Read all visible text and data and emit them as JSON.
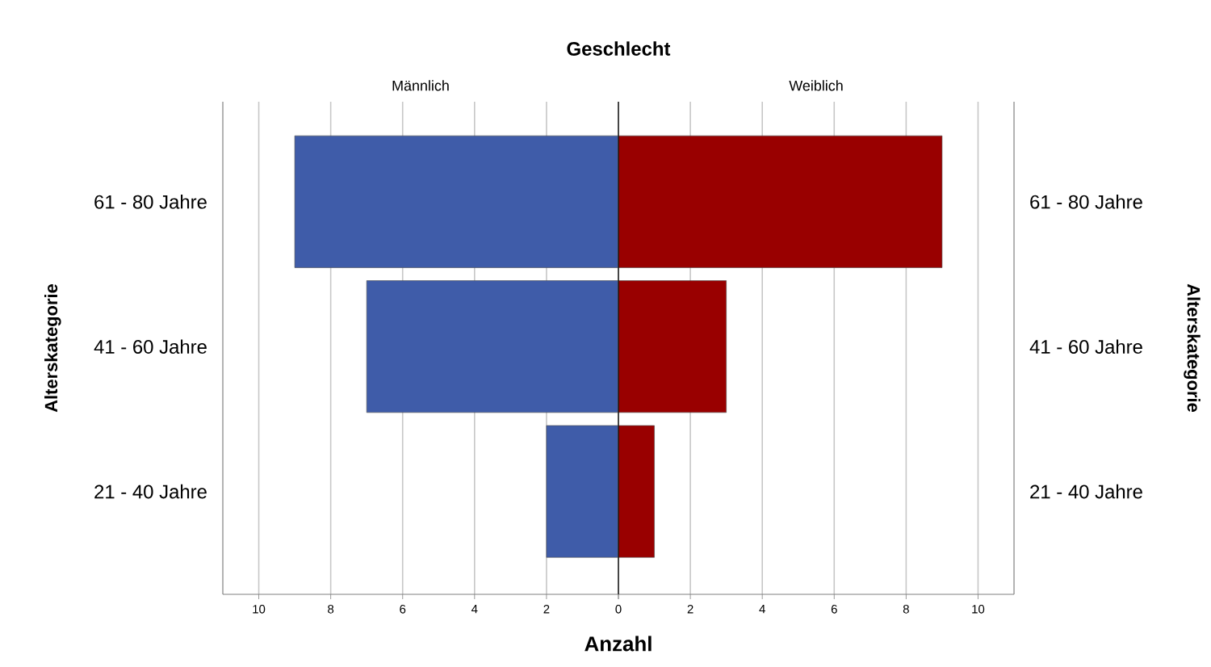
{
  "chart_data": [
    {
      "type": "bar",
      "orientation": "horizontal",
      "title": "Geschlecht",
      "subtitle": "Männlich",
      "xlabel": "Anzahl",
      "ylabel": "Alterskategorie",
      "categories": [
        "61 - 80 Jahre",
        "41 - 60 Jahre",
        "21 - 40 Jahre"
      ],
      "values": [
        9,
        7,
        2
      ],
      "color": "#3f5ca9",
      "xlim": [
        11,
        0
      ],
      "xticks": [
        10,
        8,
        6,
        4,
        2,
        0
      ],
      "grid": "x"
    },
    {
      "type": "bar",
      "orientation": "horizontal",
      "subtitle": "Weiblich",
      "ylabel": "Alterskategorie",
      "categories": [
        "61 - 80 Jahre",
        "41 - 60 Jahre",
        "21 - 40 Jahre"
      ],
      "values": [
        9,
        3,
        1
      ],
      "color": "#990000",
      "xlim": [
        0,
        11
      ],
      "xticks": [
        {
          "value": 0,
          "label": null
        },
        2,
        4,
        6,
        8,
        10
      ],
      "grid": "x"
    }
  ]
}
